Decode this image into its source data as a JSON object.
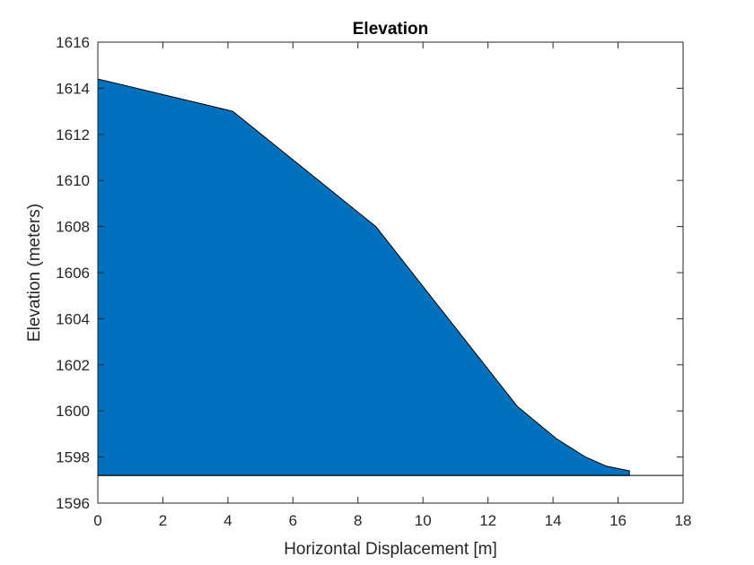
{
  "chart_data": {
    "type": "area",
    "title": "Elevation",
    "xlabel": "Horizontal Displacement [m]",
    "ylabel": "Elevation (meters)",
    "xlim": [
      0,
      18
    ],
    "ylim": [
      1596,
      1616
    ],
    "xticks": [
      0,
      2,
      4,
      6,
      8,
      10,
      12,
      14,
      16,
      18
    ],
    "yticks": [
      1596,
      1598,
      1600,
      1602,
      1604,
      1606,
      1608,
      1610,
      1612,
      1614,
      1616
    ],
    "grid": false,
    "baseline": 1597.2,
    "fill_color": "#0072BD",
    "edge_color": "#000000",
    "series": [
      {
        "x": [
          0,
          4.15,
          8.55,
          12.9,
          14.1,
          15.0,
          15.65,
          16.35,
          16.35
        ],
        "y": [
          1614.4,
          1613.0,
          1608.0,
          1600.2,
          1598.8,
          1598.0,
          1597.6,
          1597.4,
          1597.2
        ]
      }
    ]
  }
}
